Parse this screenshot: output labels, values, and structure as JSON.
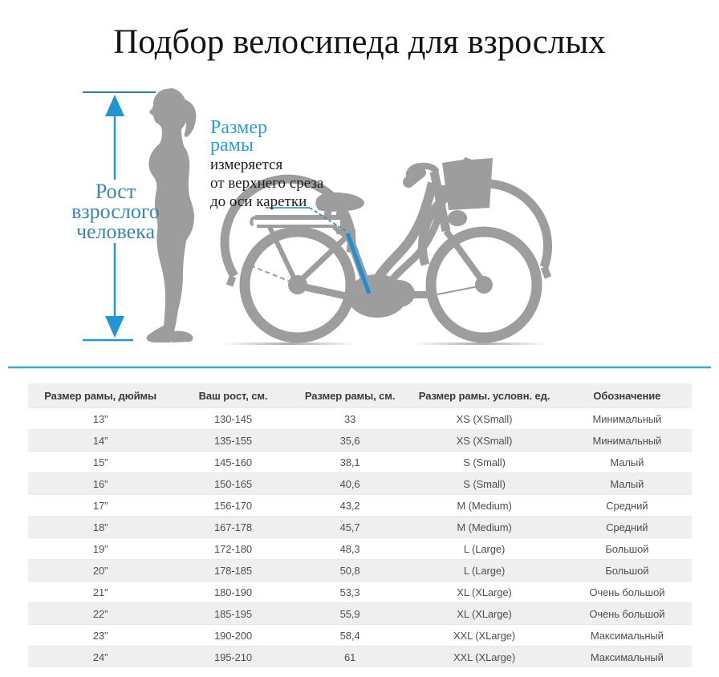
{
  "title": "Подбор велосипеда для взрослых",
  "illustration": {
    "height_label_lines": [
      "Рост",
      "взрослого",
      "человека"
    ],
    "frame_size_label_lines": [
      "Размер",
      "рамы"
    ],
    "frame_size_note_lines": [
      "измеряется",
      "от верхнего среза",
      "до оси каретки"
    ],
    "icons": [
      "person-silhouette",
      "bicycle-silhouette",
      "height-arrow",
      "frame-size-highlight",
      "leader-line",
      "section-divider"
    ]
  },
  "colors": {
    "c-sil": "#9d9d9d",
    "c-arrow": "#2196d3",
    "c-arrow-dark": "#2a7f9e",
    "c-leader": "#2a8aa8",
    "c-highlight": "#1e8fd5",
    "c-sep": "#3aabc0",
    "c-title": "#141414",
    "c-label-teal": "#3b87ac",
    "c-label-blue": "#2d9fd6",
    "c-note": "#1d1d1d",
    "c-header-text": "#3a3a3a",
    "c-cell-text": "#4f4f4f",
    "c-row-alt": "#efefef"
  },
  "table": {
    "columns": [
      "Размер рамы, дюймы",
      "Ваш рост, см.",
      "Размер рамы, см.",
      "Размер рамы. условн. ед.",
      "Обозначение"
    ],
    "rows": [
      [
        "13”",
        "130-145",
        "33",
        "XS (XSmall)",
        "Минимальный"
      ],
      [
        "14”",
        "135-155",
        "35,6",
        "XS (XSmall)",
        "Минимальный"
      ],
      [
        "15”",
        "145-160",
        "38,1",
        "S (Small)",
        "Малый"
      ],
      [
        "16”",
        "150-165",
        "40,6",
        "S (Small)",
        "Малый"
      ],
      [
        "17”",
        "156-170",
        "43,2",
        "M (Medium)",
        "Средний"
      ],
      [
        "18”",
        "167-178",
        "45,7",
        "M (Medium)",
        "Средний"
      ],
      [
        "19”",
        "172-180",
        "48,3",
        "L (Large)",
        "Большой"
      ],
      [
        "20”",
        "178-185",
        "50,8",
        "L (Large)",
        "Большой"
      ],
      [
        "21”",
        "180-190",
        "53,3",
        "XL (XLarge)",
        "Очень большой"
      ],
      [
        "22”",
        "185-195",
        "55,9",
        "XL (XLarge)",
        "Очень большой"
      ],
      [
        "23”",
        "190-200",
        "58,4",
        "XXL (XLarge)",
        "Максимальный"
      ],
      [
        "24”",
        "195-210",
        "61",
        "XXL (XLarge)",
        "Максимальный"
      ]
    ]
  }
}
